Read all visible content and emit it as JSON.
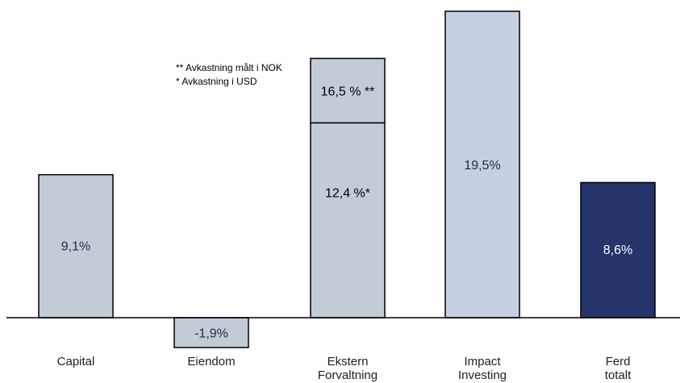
{
  "chart_data": {
    "type": "bar",
    "stacked": true,
    "grid": false,
    "legend": "none",
    "categories": [
      "Capital",
      "Eiendom",
      "Ekstern\nForvaltning",
      "Impact\nInvesting",
      "Ferd\ntotalt"
    ],
    "bars": [
      {
        "category": "Capital",
        "segments": [
          {
            "value": 9.1,
            "label": "9,1%",
            "color": "#c3ccd6",
            "text_color": "#1f2a44"
          }
        ]
      },
      {
        "category": "Eiendom",
        "segments": [
          {
            "value": -1.9,
            "label": "-1,9%",
            "color": "#c3ccd6",
            "text_color": "#1f2a44"
          }
        ]
      },
      {
        "category": "Ekstern\nForvaltning",
        "segments": [
          {
            "value": 12.4,
            "label": "12,4 %*",
            "color": "#c3ccd6",
            "text_color": "#000000"
          },
          {
            "value": 4.1,
            "label": "16,5 % **",
            "color": "#c3ccd6",
            "text_color": "#000000"
          }
        ]
      },
      {
        "category": "Impact\nInvesting",
        "segments": [
          {
            "value": 19.5,
            "label": "19,5%",
            "color": "#c6d0e2",
            "text_color": "#1f2a44"
          }
        ]
      },
      {
        "category": "Ferd\ntotalt",
        "segments": [
          {
            "value": 8.6,
            "label": "8,6%",
            "color": "#25346a",
            "text_color": "#ffffff"
          }
        ]
      }
    ],
    "ylim": [
      -2.0,
      19.5
    ],
    "annotations": [
      "** Avkastning målt i NOK",
      "* Avkastning i USD"
    ]
  }
}
